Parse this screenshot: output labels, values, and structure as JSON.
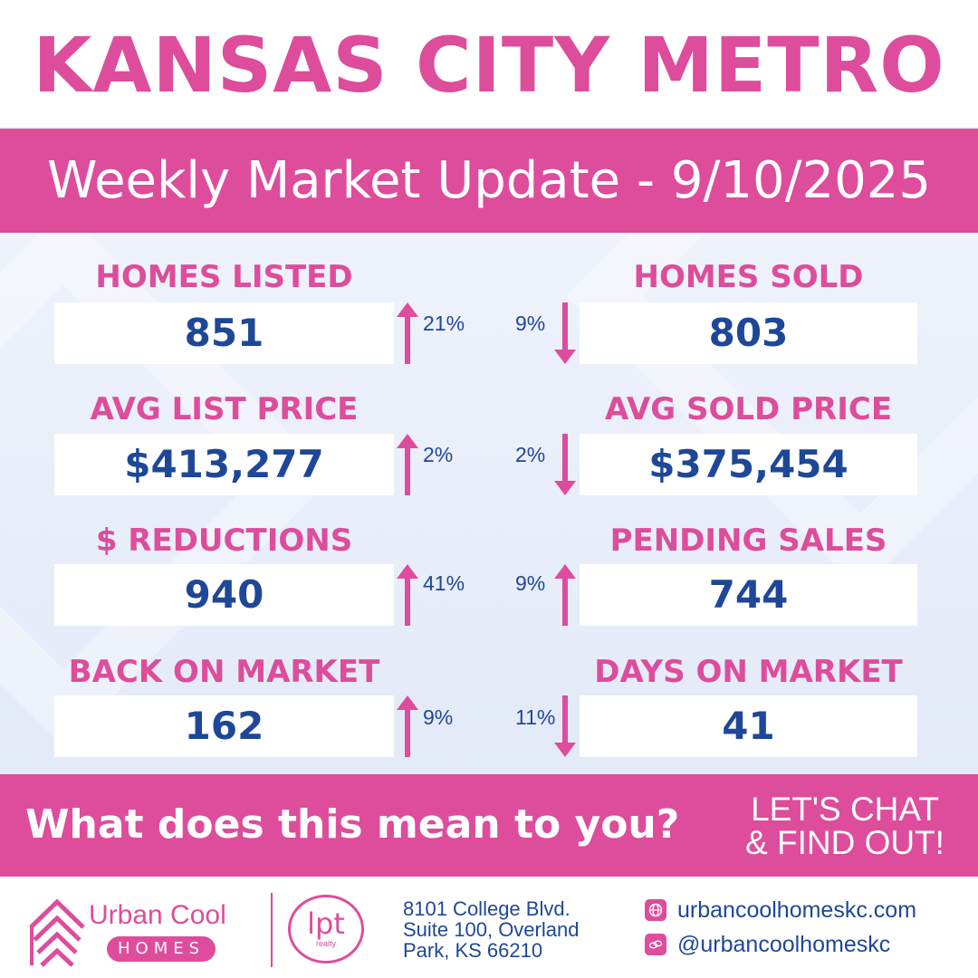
{
  "header": {
    "title": "KANSAS CITY METRO",
    "subtitle": "Weekly Market Update - 9/10/2025"
  },
  "stats": [
    {
      "label": "HOMES LISTED",
      "value": "851",
      "change": "21%",
      "direction": "up"
    },
    {
      "label": "HOMES SOLD",
      "value": "803",
      "change": "9%",
      "direction": "down"
    },
    {
      "label": "AVG LIST PRICE",
      "value": "$413,277",
      "change": "2%",
      "direction": "up"
    },
    {
      "label": "AVG SOLD PRICE",
      "value": "$375,454",
      "change": "2%",
      "direction": "down"
    },
    {
      "label": "$ REDUCTIONS",
      "value": "940",
      "change": "41%",
      "direction": "up"
    },
    {
      "label": "PENDING SALES",
      "value": "744",
      "change": "9%",
      "direction": "up"
    },
    {
      "label": "BACK ON MARKET",
      "value": "162",
      "change": "9%",
      "direction": "up"
    },
    {
      "label": "DAYS ON MARKET",
      "value": "41",
      "change": "11%",
      "direction": "down"
    }
  ],
  "cta": {
    "question": "What does this mean to you?",
    "chat_line1": "LET'S CHAT",
    "chat_line2": "& FIND OUT!"
  },
  "footer": {
    "brand_top": "Urban Cool",
    "brand_bottom": "HOMES",
    "partner_logo": "lpt",
    "partner_sub": "realty",
    "address_line1": "8101 College Blvd.",
    "address_line2": "Suite 100, Overland",
    "address_line3": "Park, KS 66210",
    "website": "urbancoolhomeskc.com",
    "social": "@urbancoolhomeskc",
    "website_icon": "globe-icon",
    "social_icon": "link-icon"
  },
  "colors": {
    "accent_pink": "#dd4d9c",
    "value_blue": "#1f4797",
    "background": "#eaf0fb"
  }
}
